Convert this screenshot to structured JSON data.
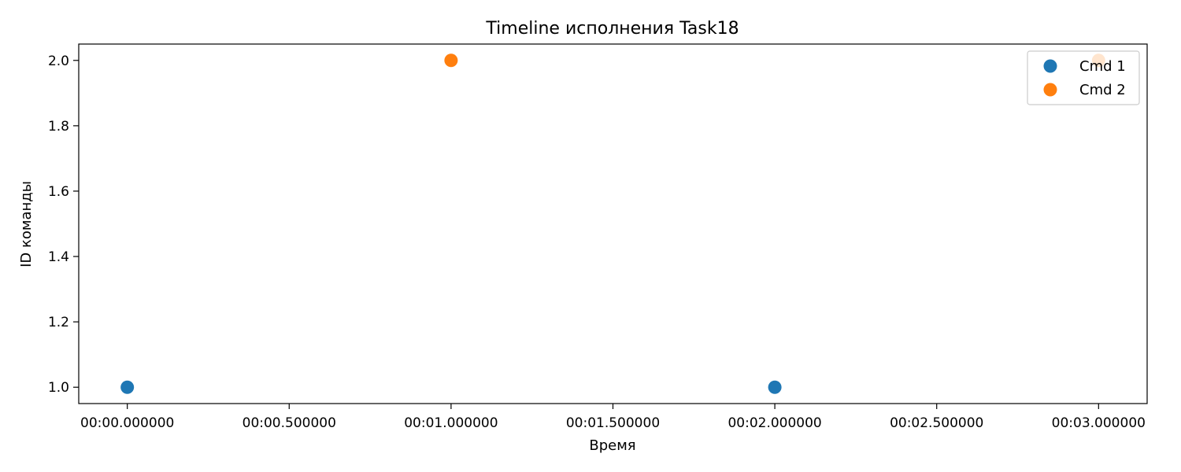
{
  "chart_data": {
    "type": "scatter",
    "title": "Timeline исполнения Task18",
    "xlabel": "Время",
    "ylabel": "ID команды",
    "xlim": [
      -0.15,
      3.15
    ],
    "ylim": [
      0.95,
      2.05
    ],
    "x_unit": "minutes",
    "x_ticks": [
      0,
      0.5,
      1,
      1.5,
      2,
      2.5,
      3
    ],
    "x_tick_labels": [
      "00:00.000000",
      "00:00.500000",
      "00:01.000000",
      "00:01.500000",
      "00:02.000000",
      "00:02.500000",
      "00:03.000000"
    ],
    "y_ticks": [
      1.0,
      1.2,
      1.4,
      1.6,
      1.8,
      2.0
    ],
    "y_tick_labels": [
      "1.0",
      "1.2",
      "1.4",
      "1.6",
      "1.8",
      "2.0"
    ],
    "grid": false,
    "legend_position": "top-right",
    "series": [
      {
        "name": "Cmd 1",
        "color": "#1f77b4",
        "x": [
          0,
          2
        ],
        "y": [
          1,
          1
        ]
      },
      {
        "name": "Cmd 2",
        "color": "#ff7f0e",
        "x": [
          1,
          3
        ],
        "y": [
          2,
          2
        ]
      }
    ]
  }
}
